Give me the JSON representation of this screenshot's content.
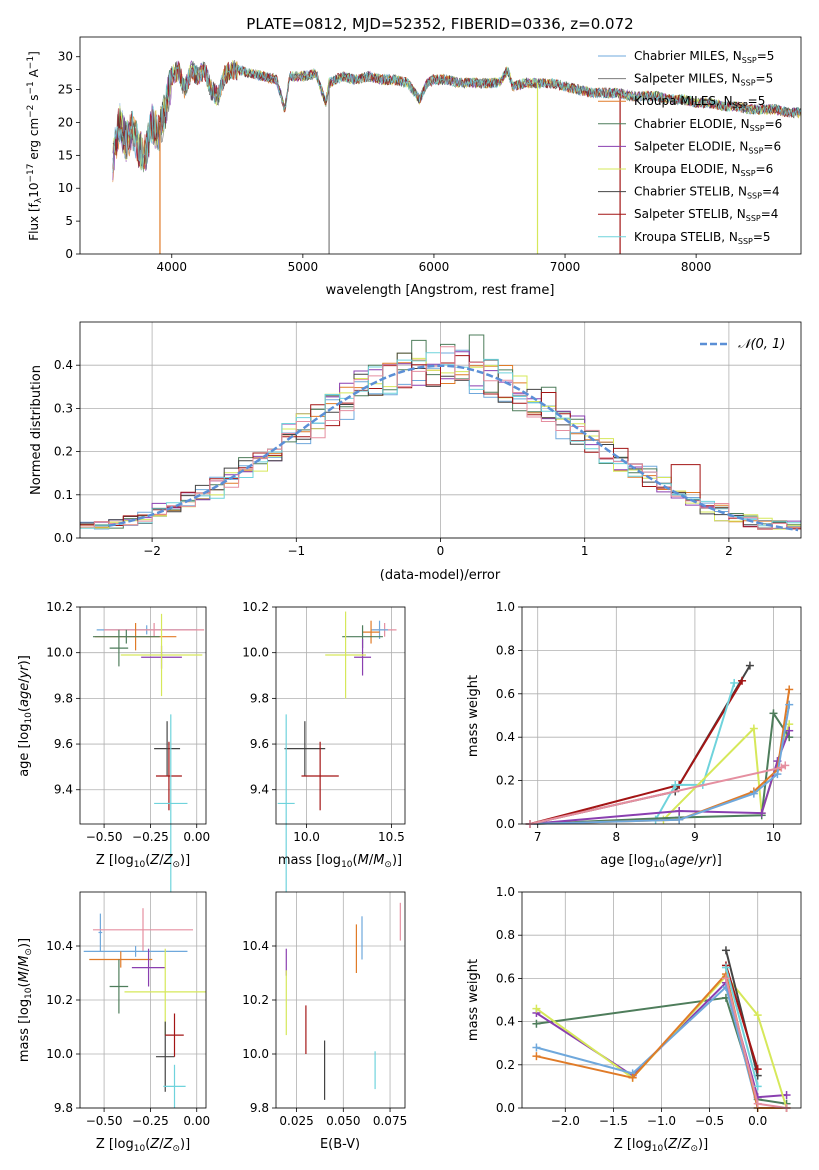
{
  "figure": {
    "title": "PLATE=0812, MJD=52352, FIBERID=0336, z=0.072"
  },
  "colors": {
    "Chabrier MILES": "#6fa8dc",
    "Salpeter MILES": "#7b7b7b",
    "Kroupa MILES": "#e07b28",
    "Chabrier ELODIE": "#4e7d5b",
    "Salpeter ELODIE": "#8a3fb0",
    "Kroupa ELODIE": "#d6e85a",
    "Chabrier STELIB": "#444444",
    "Salpeter STELIB": "#a31515",
    "Kroupa STELIB": "#6fd3dc",
    "extra_pink": "#e58fa0",
    "gauss": "#5b8fd6"
  },
  "chart_data": [
    {
      "type": "line",
      "id": "spectrum",
      "xlabel": "wavelength [Angstrom, rest frame]",
      "ylabel": "Flux [fλ10⁻¹⁷ erg cm⁻² s⁻¹ A⁻¹]",
      "xlim": [
        3300,
        8800
      ],
      "ylim": [
        0,
        33
      ],
      "xticks": [
        4000,
        5000,
        6000,
        7000,
        8000
      ],
      "yticks": [
        0,
        5,
        10,
        15,
        20,
        25,
        30
      ],
      "grid": false,
      "legend_position": "upper right",
      "legend": [
        {
          "label": "Chabrier MILES, N",
          "sub": "SSP",
          "suffix": "=5",
          "color": "#6fa8dc"
        },
        {
          "label": "Salpeter MILES, N",
          "sub": "SSP",
          "suffix": "=5",
          "color": "#7b7b7b"
        },
        {
          "label": "Kroupa MILES, N",
          "sub": "SSP",
          "suffix": "=5",
          "color": "#e07b28"
        },
        {
          "label": "Chabrier ELODIE, N",
          "sub": "SSP",
          "suffix": "=6",
          "color": "#4e7d5b"
        },
        {
          "label": "Salpeter ELODIE, N",
          "sub": "SSP",
          "suffix": "=6",
          "color": "#8a3fb0"
        },
        {
          "label": "Kroupa ELODIE, N",
          "sub": "SSP",
          "suffix": "=6",
          "color": "#d6e85a"
        },
        {
          "label": "Chabrier STELIB, N",
          "sub": "SSP",
          "suffix": "=4",
          "color": "#444444"
        },
        {
          "label": "Salpeter STELIB, N",
          "sub": "SSP",
          "suffix": "=4",
          "color": "#a31515"
        },
        {
          "label": "Kroupa STELIB, N",
          "sub": "SSP",
          "suffix": "=5",
          "color": "#6fd3dc"
        }
      ],
      "spectrum_outline": [
        [
          3550,
          14
        ],
        [
          3600,
          20
        ],
        [
          3650,
          17
        ],
        [
          3700,
          19
        ],
        [
          3750,
          16
        ],
        [
          3800,
          15
        ],
        [
          3850,
          20
        ],
        [
          3900,
          18
        ],
        [
          3950,
          22
        ],
        [
          4000,
          27
        ],
        [
          4050,
          28
        ],
        [
          4100,
          25
        ],
        [
          4150,
          28
        ],
        [
          4200,
          27
        ],
        [
          4250,
          28
        ],
        [
          4300,
          25
        ],
        [
          4350,
          24
        ],
        [
          4400,
          27
        ],
        [
          4450,
          28
        ],
        [
          4500,
          28
        ],
        [
          4600,
          27.5
        ],
        [
          4700,
          27
        ],
        [
          4800,
          26.5
        ],
        [
          4862,
          22
        ],
        [
          4900,
          27
        ],
        [
          5000,
          27
        ],
        [
          5100,
          27.5
        ],
        [
          5175,
          23
        ],
        [
          5200,
          26
        ],
        [
          5300,
          27
        ],
        [
          5400,
          26.5
        ],
        [
          5500,
          27
        ],
        [
          5600,
          26.5
        ],
        [
          5700,
          26.5
        ],
        [
          5800,
          26
        ],
        [
          5890,
          23.5
        ],
        [
          5950,
          26
        ],
        [
          6000,
          26.5
        ],
        [
          6100,
          26.5
        ],
        [
          6200,
          26
        ],
        [
          6300,
          26
        ],
        [
          6400,
          26
        ],
        [
          6500,
          26
        ],
        [
          6563,
          28
        ],
        [
          6600,
          25.5
        ],
        [
          6700,
          26
        ],
        [
          6800,
          26
        ],
        [
          6900,
          26
        ],
        [
          7000,
          25.5
        ],
        [
          7100,
          25
        ],
        [
          7200,
          24.5
        ],
        [
          7300,
          24.5
        ],
        [
          7400,
          24.5
        ],
        [
          7500,
          24
        ],
        [
          7600,
          24
        ],
        [
          7700,
          24
        ],
        [
          7800,
          23.5
        ],
        [
          7900,
          23.5
        ],
        [
          8000,
          23
        ],
        [
          8100,
          23
        ],
        [
          8200,
          22.5
        ],
        [
          8300,
          22.5
        ],
        [
          8400,
          22
        ],
        [
          8500,
          22
        ],
        [
          8600,
          22
        ],
        [
          8700,
          21.5
        ],
        [
          8800,
          21.5
        ]
      ],
      "dropouts": [
        3910,
        5200,
        6790,
        7420
      ]
    },
    {
      "type": "bar",
      "id": "residual-histogram",
      "xlabel": "(data-model)/error",
      "ylabel": "Normed distribution",
      "xlim": [
        -2.5,
        2.5
      ],
      "ylim": [
        0,
        0.5
      ],
      "xticks": [
        -2,
        -1,
        0,
        1,
        2
      ],
      "yticks": [
        0.0,
        0.1,
        0.2,
        0.3,
        0.4
      ],
      "grid": true,
      "bin_width": 0.1,
      "gauss_legend": "𝒩(0, 1)",
      "gauss_color": "#5b8fd6",
      "step_colors": [
        "#6fa8dc",
        "#e07b28",
        "#4e7d5b",
        "#8a3fb0",
        "#d6e85a",
        "#444444",
        "#a31515",
        "#6fd3dc",
        "#e58fa0"
      ],
      "highlight": [
        {
          "x": 0.25,
          "y": 0.47,
          "color": "#4e7d5b"
        },
        {
          "x": 1.7,
          "y": 0.17,
          "color": "#a31515"
        },
        {
          "x": -1.4,
          "y": 0.14,
          "color": "#6fd3dc"
        }
      ]
    },
    {
      "type": "scatter",
      "id": "z-vs-age",
      "xlabel": "Z [log₁₀(Z/Z☉)]",
      "ylabel": "age  [log₁₀(age/yr)]",
      "xlim": [
        -0.63,
        0.05
      ],
      "ylim": [
        9.25,
        10.2
      ],
      "xticks": [
        -0.5,
        -0.25,
        0.0
      ],
      "xticklabels": [
        "−0.50",
        "−0.25",
        "0.00"
      ],
      "yticks": [
        9.4,
        9.6,
        9.8,
        10.0,
        10.2
      ],
      "grid": true,
      "points": [
        {
          "x": -0.27,
          "y": 10.1,
          "ex": 0.27,
          "ey": 0.02,
          "color": "#6fa8dc"
        },
        {
          "x": -0.23,
          "y": 10.1,
          "ex": 0.27,
          "ey": 0.03,
          "color": "#e58fa0"
        },
        {
          "x": -0.33,
          "y": 10.07,
          "ex": 0.22,
          "ey": 0.06,
          "color": "#e07b28"
        },
        {
          "x": -0.38,
          "y": 10.07,
          "ex": 0.18,
          "ey": 0.03,
          "color": "#4e7d5b"
        },
        {
          "x": -0.42,
          "y": 10.02,
          "ex": 0.05,
          "ey": 0.08,
          "color": "#4e7d5b"
        },
        {
          "x": -0.19,
          "y": 9.98,
          "ex": 0.11,
          "ey": 0.05,
          "color": "#8a3fb0"
        },
        {
          "x": -0.19,
          "y": 9.99,
          "ex": 0.22,
          "ey": 0.18,
          "color": "#d6e85a"
        },
        {
          "x": -0.16,
          "y": 9.58,
          "ex": 0.07,
          "ey": 0.12,
          "color": "#444444"
        },
        {
          "x": -0.15,
          "y": 9.46,
          "ex": 0.07,
          "ey": 0.15,
          "color": "#a31515"
        },
        {
          "x": -0.14,
          "y": 9.34,
          "ex": 0.09,
          "ey": 0.39,
          "color": "#6fd3dc"
        }
      ]
    },
    {
      "type": "scatter",
      "id": "mass-vs-age",
      "xlabel": "mass [log₁₀(M/M☉)]",
      "ylabel": "",
      "xlim": [
        9.82,
        10.58
      ],
      "ylim": [
        9.25,
        10.2
      ],
      "xticks": [
        10.0,
        10.5
      ],
      "xticklabels": [
        "10.0",
        "10.5"
      ],
      "yticks": [
        9.4,
        9.6,
        9.8,
        10.0,
        10.2
      ],
      "grid": true,
      "points": [
        {
          "x": 10.46,
          "y": 10.1,
          "ex": 0.07,
          "ey": 0.03,
          "color": "#e58fa0"
        },
        {
          "x": 10.43,
          "y": 10.1,
          "ex": 0.05,
          "ey": 0.04,
          "color": "#6fa8dc"
        },
        {
          "x": 10.38,
          "y": 10.09,
          "ex": 0.05,
          "ey": 0.05,
          "color": "#e07b28"
        },
        {
          "x": 10.33,
          "y": 10.07,
          "ex": 0.12,
          "ey": 0.05,
          "color": "#4e7d5b"
        },
        {
          "x": 10.33,
          "y": 9.98,
          "ex": 0.05,
          "ey": 0.08,
          "color": "#8a3fb0"
        },
        {
          "x": 10.23,
          "y": 9.99,
          "ex": 0.12,
          "ey": 0.19,
          "color": "#d6e85a"
        },
        {
          "x": 9.99,
          "y": 9.58,
          "ex": 0.12,
          "ey": 0.12,
          "color": "#444444"
        },
        {
          "x": 10.08,
          "y": 9.46,
          "ex": 0.11,
          "ey": 0.15,
          "color": "#a31515"
        },
        {
          "x": 9.88,
          "y": 9.34,
          "ex": 0.05,
          "ey": 0.39,
          "color": "#6fd3dc"
        }
      ]
    },
    {
      "type": "line",
      "id": "age-vs-mass-weight",
      "xlabel": "age  [log₁₀(age/yr)]",
      "ylabel": "mass weight",
      "xlim": [
        6.8,
        10.35
      ],
      "ylim": [
        0,
        1.0
      ],
      "xticks": [
        7,
        8,
        9,
        10
      ],
      "yticks": [
        0.0,
        0.2,
        0.4,
        0.6,
        0.8,
        1.0
      ],
      "grid": true,
      "series": [
        {
          "color": "#444444",
          "x": [
            6.9,
            8.75,
            9.7
          ],
          "y": [
            0.0,
            0.15,
            0.73
          ]
        },
        {
          "color": "#a31515",
          "x": [
            6.9,
            8.8,
            9.6
          ],
          "y": [
            0.0,
            0.18,
            0.66
          ]
        },
        {
          "color": "#6fd3dc",
          "x": [
            6.9,
            8.5,
            8.75,
            9.1,
            9.5
          ],
          "y": [
            0.0,
            0.02,
            0.18,
            0.18,
            0.65
          ]
        },
        {
          "color": "#d6e85a",
          "x": [
            6.9,
            8.6,
            9.75,
            9.85,
            10.2
          ],
          "y": [
            0.0,
            0.02,
            0.44,
            0.05,
            0.46
          ]
        },
        {
          "color": "#4e7d5b",
          "x": [
            6.9,
            8.8,
            9.85,
            10.0,
            10.2
          ],
          "y": [
            0.0,
            0.03,
            0.04,
            0.51,
            0.4
          ]
        },
        {
          "color": "#8a3fb0",
          "x": [
            6.9,
            8.8,
            9.85,
            10.05,
            10.2
          ],
          "y": [
            0.0,
            0.06,
            0.05,
            0.29,
            0.43
          ]
        },
        {
          "color": "#e07b28",
          "x": [
            6.9,
            8.8,
            9.75,
            10.05,
            10.2
          ],
          "y": [
            0.0,
            0.02,
            0.15,
            0.25,
            0.62
          ]
        },
        {
          "color": "#6fa8dc",
          "x": [
            6.9,
            8.8,
            9.75,
            10.05,
            10.2
          ],
          "y": [
            0.0,
            0.02,
            0.14,
            0.23,
            0.55
          ]
        },
        {
          "color": "#e58fa0",
          "x": [
            6.9,
            10.1,
            10.15
          ],
          "y": [
            0.0,
            0.26,
            0.27
          ]
        }
      ]
    },
    {
      "type": "scatter",
      "id": "z-vs-mass",
      "xlabel": "Z [log₁₀(Z/Z☉)]",
      "ylabel": "mass [log₁₀(M/M☉)]",
      "xlim": [
        -0.63,
        0.05
      ],
      "ylim": [
        9.8,
        10.6
      ],
      "xticks": [
        -0.5,
        -0.25,
        0.0
      ],
      "xticklabels": [
        "−0.50",
        "−0.25",
        "0.00"
      ],
      "yticks": [
        9.8,
        10.0,
        10.2,
        10.4
      ],
      "grid": true,
      "points": [
        {
          "x": -0.52,
          "y": 10.45,
          "ex": 0.01,
          "ey": 0.07,
          "color": "#6fa8dc"
        },
        {
          "x": -0.29,
          "y": 10.46,
          "ex": 0.27,
          "ey": 0.08,
          "color": "#e58fa0"
        },
        {
          "x": -0.33,
          "y": 10.38,
          "ex": 0.28,
          "ey": 0.02,
          "color": "#6fa8dc"
        },
        {
          "x": -0.41,
          "y": 10.35,
          "ex": 0.17,
          "ey": 0.03,
          "color": "#e07b28"
        },
        {
          "x": -0.42,
          "y": 10.25,
          "ex": 0.05,
          "ey": 0.1,
          "color": "#4e7d5b"
        },
        {
          "x": -0.26,
          "y": 10.32,
          "ex": 0.09,
          "ey": 0.07,
          "color": "#8a3fb0"
        },
        {
          "x": -0.17,
          "y": 10.23,
          "ex": 0.22,
          "ey": 0.16,
          "color": "#d6e85a"
        },
        {
          "x": -0.17,
          "y": 9.99,
          "ex": 0.05,
          "ey": 0.13,
          "color": "#444444"
        },
        {
          "x": -0.12,
          "y": 10.07,
          "ex": 0.05,
          "ey": 0.08,
          "color": "#a31515"
        },
        {
          "x": -0.12,
          "y": 9.88,
          "ex": 0.06,
          "ey": 0.08,
          "color": "#6fd3dc"
        }
      ]
    },
    {
      "type": "scatter",
      "id": "ebv-vs-mass",
      "xlabel": "E(B-V)",
      "ylabel": "",
      "xlim": [
        0.014,
        0.083
      ],
      "ylim": [
        9.8,
        10.6
      ],
      "xticks": [
        0.025,
        0.05,
        0.075
      ],
      "xticklabels": [
        "0.025",
        "0.050",
        "0.075"
      ],
      "yticks": [
        9.8,
        10.0,
        10.2,
        10.4
      ],
      "grid": true,
      "points": [
        {
          "x": 0.0195,
          "y": 10.34,
          "ey": 0.05,
          "color": "#8a3fb0"
        },
        {
          "x": 0.0195,
          "y": 10.19,
          "ey": 0.12,
          "color": "#d6e85a"
        },
        {
          "x": 0.03,
          "y": 10.09,
          "ey": 0.09,
          "color": "#a31515"
        },
        {
          "x": 0.04,
          "y": 9.94,
          "ey": 0.11,
          "color": "#444444"
        },
        {
          "x": 0.057,
          "y": 10.39,
          "ey": 0.09,
          "color": "#e07b28"
        },
        {
          "x": 0.06,
          "y": 10.43,
          "ey": 0.08,
          "color": "#6fa8dc"
        },
        {
          "x": 0.067,
          "y": 9.94,
          "ey": 0.07,
          "color": "#6fd3dc"
        },
        {
          "x": 0.0805,
          "y": 10.49,
          "ey": 0.07,
          "color": "#e58fa0"
        }
      ]
    },
    {
      "type": "line",
      "id": "z-vs-mass-weight",
      "xlabel": "Z [log₁₀(Z/Z☉)]",
      "ylabel": "mass weight",
      "xlim": [
        -2.45,
        0.45
      ],
      "ylim": [
        0,
        1.0
      ],
      "xticks": [
        -2.0,
        -1.5,
        -1.0,
        -0.5,
        0.0
      ],
      "xticklabels": [
        "−2.0",
        "−1.5",
        "−1.0",
        "−0.5",
        "0.0"
      ],
      "yticks": [
        0.0,
        0.2,
        0.4,
        0.6,
        0.8,
        1.0
      ],
      "grid": true,
      "series": [
        {
          "color": "#4e7d5b",
          "x": [
            -2.3,
            -0.33,
            0.0,
            0.3
          ],
          "y": [
            0.39,
            0.51,
            0.04,
            0.02
          ]
        },
        {
          "color": "#8a3fb0",
          "x": [
            -2.3,
            -1.3,
            -0.33,
            0.0,
            0.3
          ],
          "y": [
            0.44,
            0.15,
            0.58,
            0.05,
            0.06
          ]
        },
        {
          "color": "#d6e85a",
          "x": [
            -2.3,
            -1.3,
            -0.33,
            0.0,
            0.3
          ],
          "y": [
            0.46,
            0.14,
            0.61,
            0.43,
            0.0
          ]
        },
        {
          "color": "#6fa8dc",
          "x": [
            -2.3,
            -1.3,
            -0.33,
            0.0,
            0.3
          ],
          "y": [
            0.28,
            0.16,
            0.56,
            0.0,
            0.0
          ]
        },
        {
          "color": "#e07b28",
          "x": [
            -2.3,
            -1.3,
            -0.33,
            0.0,
            0.3
          ],
          "y": [
            0.24,
            0.14,
            0.62,
            0.0,
            0.0
          ]
        },
        {
          "color": "#444444",
          "x": [
            -0.33,
            0.0
          ],
          "y": [
            0.73,
            0.15
          ]
        },
        {
          "color": "#a31515",
          "x": [
            -0.33,
            0.0
          ],
          "y": [
            0.66,
            0.18
          ]
        },
        {
          "color": "#6fd3dc",
          "x": [
            -0.33,
            0.0
          ],
          "y": [
            0.65,
            0.1
          ]
        },
        {
          "color": "#e58fa0",
          "x": [
            -0.33,
            0.0,
            0.3
          ],
          "y": [
            0.6,
            0.02,
            0.0
          ]
        }
      ]
    }
  ]
}
